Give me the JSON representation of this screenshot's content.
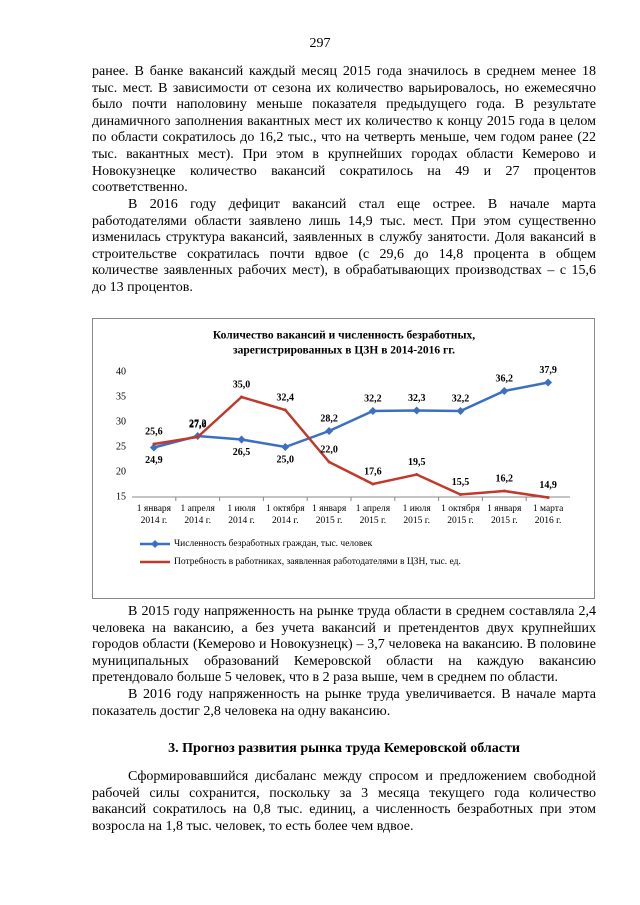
{
  "doc": {
    "page_number": "297",
    "paragraphs_before": [
      "ранее. В банке вакансий каждый месяц 2015 года значилось в среднем менее 18 тыс. мест. В зависимости от сезона их количество варьировалось, но ежемесячно было почти наполовину меньше показателя предыдущего года. В результате динамичного заполнения вакантных мест их количество к концу 2015 года в целом по области сократилось до 16,2 тыс., что на четверть меньше, чем годом ранее (22 тыс. вакантных мест). При этом в крупнейших городах области Кемерово и Новокузнецке количество вакансий сократилось на 49 и 27 процентов соответственно.",
      "В 2016 году дефицит вакансий стал еще острее. В начале марта работодателями области заявлено лишь 14,9 тыс. мест. При этом существенно изменилась структура вакансий, заявленных в службу занятости. Доля вакансий в строительстве сократилась почти вдвое (с 29,6 до 14,8 процента в общем количестве заявленных рабочих мест), в обрабатывающих производствах – с 15,6 до 13 процентов."
    ],
    "paragraphs_after": [
      "В 2015 году напряженность на рынке труда области в среднем составляла 2,4 человека на вакансию, а без учета вакансий и претендентов двух крупнейших городов области (Кемерово и Новокузнецк) – 3,7 человека на вакансию. В половине муниципальных образований Кемеровской области на каждую вакансию претендовало больше 5 человек, что в 2 раза выше, чем в среднем по области.",
      "В 2016 году напряженность на рынке труда увеличивается. В начале марта показатель достиг 2,8 человека на одну вакансию."
    ],
    "heading": "3. Прогноз развития рынка труда Кемеровской области",
    "paragraphs_end": [
      "Сформировавшийся дисбаланс между спросом и предложением свободной рабочей силы сохранится, поскольку за 3 месяца текущего года количество вакансий сократилось на 0,8 тыс. единиц, а численность безработных при этом возросла на 1,8 тыс. человек, то есть более чем вдвое."
    ]
  },
  "chart_data": {
    "type": "line",
    "title": [
      "Количество вакансий и численность безработных,",
      "зарегистрированных в ЦЗН в 2014-2016 гг."
    ],
    "categories": [
      [
        "1 января",
        "2014 г."
      ],
      [
        "1 апреля",
        "2014 г."
      ],
      [
        "1 июля",
        "2014 г."
      ],
      [
        "1 октября",
        "2014 г."
      ],
      [
        "1 января",
        "2015 г."
      ],
      [
        "1 апреля",
        "2015 г."
      ],
      [
        "1 июля",
        "2015 г."
      ],
      [
        "1 октября",
        "2015 г."
      ],
      [
        "1 января",
        "2015 г."
      ],
      [
        "1 марта",
        "2016 г."
      ]
    ],
    "series": [
      {
        "name": "Численность безработных граждан, тыс. человек",
        "color": "#3a6fc4",
        "marker": "diamond",
        "values": [
          24.9,
          27.2,
          26.5,
          25.0,
          28.2,
          32.2,
          32.3,
          32.2,
          36.2,
          37.9
        ],
        "value_labels": [
          "24,9",
          "27,2",
          "26,5",
          "25,0",
          "28,2",
          "32,2",
          "32,3",
          "32,2",
          "36,2",
          "37,9"
        ]
      },
      {
        "name": "Потребность в работниках, заявленная работодателями в ЦЗН, тыс. ед.",
        "color": "#c0392b",
        "marker": "none",
        "values": [
          25.6,
          27.0,
          35.0,
          32.4,
          22.0,
          17.6,
          19.5,
          15.5,
          16.2,
          14.9
        ],
        "value_labels": [
          "25,6",
          "27,0",
          "35,0",
          "32,4",
          "22,0",
          "17,6",
          "19,5",
          "15,5",
          "16,2",
          "14,9"
        ]
      }
    ],
    "ylim": [
      15,
      40
    ],
    "yticks": [
      15,
      20,
      25,
      30,
      35,
      40
    ],
    "grid": false,
    "legend": "bottom"
  }
}
